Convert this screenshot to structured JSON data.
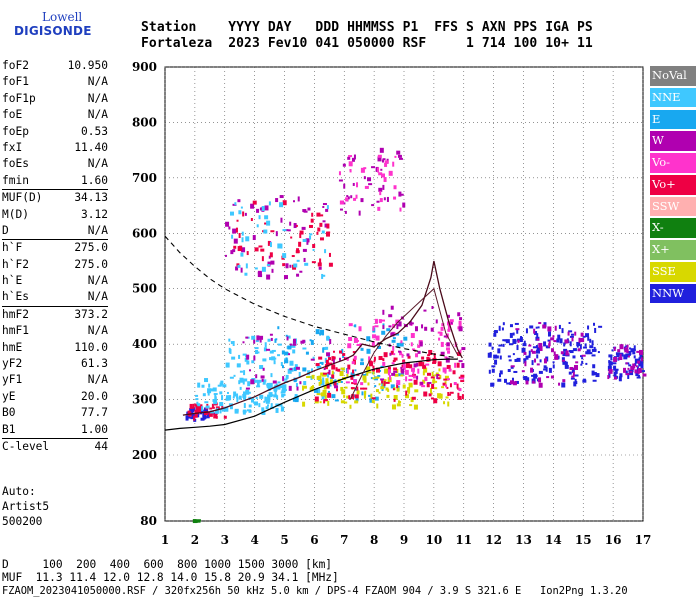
{
  "logo": {
    "line1": "Lowell",
    "line2": "DIGISONDE"
  },
  "header": {
    "labels": "Station    YYYY DAY   DDD HHMMSS P1  FFS S AXN PPS IGA PS",
    "values": "Fortaleza  2023 Fev10 041 050000 RSF     1 714 100 10+ 11"
  },
  "params": [
    {
      "k": "foF2",
      "v": "10.950"
    },
    {
      "k": "foF1",
      "v": "N/A"
    },
    {
      "k": "foF1p",
      "v": "N/A"
    },
    {
      "k": "foE",
      "v": "N/A"
    },
    {
      "k": "foEp",
      "v": "0.53"
    },
    {
      "k": "fxI",
      "v": "11.40"
    },
    {
      "k": "foEs",
      "v": "N/A"
    },
    {
      "k": "fmin",
      "v": "1.60"
    },
    {
      "k": "MUF(D)",
      "v": "34.13",
      "sep": true
    },
    {
      "k": "M(D)",
      "v": "3.12"
    },
    {
      "k": "D",
      "v": "N/A"
    },
    {
      "k": "h`F",
      "v": "275.0",
      "sep": true
    },
    {
      "k": "h`F2",
      "v": "275.0"
    },
    {
      "k": "h`E",
      "v": "N/A"
    },
    {
      "k": "h`Es",
      "v": "N/A"
    },
    {
      "k": "hmF2",
      "v": "373.2",
      "sep": true
    },
    {
      "k": "hmF1",
      "v": "N/A"
    },
    {
      "k": "hmE",
      "v": "110.0"
    },
    {
      "k": "yF2",
      "v": "61.3"
    },
    {
      "k": "yF1",
      "v": "N/A"
    },
    {
      "k": "yE",
      "v": "20.0"
    },
    {
      "k": "B0",
      "v": "77.7"
    },
    {
      "k": "B1",
      "v": "1.00"
    },
    {
      "k": "C-level",
      "v": "44",
      "sep": true
    }
  ],
  "auto": {
    "line1": "Auto:",
    "line2": "Artist5",
    "line3": "500200"
  },
  "footer": {
    "d_line": "D     100  200  400  600  800 1000 1500 3000 [km]",
    "muf_line": "MUF  11.3 11.4 12.0 12.8 14.0 15.8 20.9 34.1 [MHz]",
    "file_line": "FZAOM_2023041050000.RSF / 320fx256h 50 kHz 5.0 km / DPS-4 FZAOM 904 / 3.9 S 321.6 E   Ion2Png 1.3.20"
  },
  "legend": [
    {
      "label": "NoVal",
      "color": "#808080"
    },
    {
      "label": "NNE",
      "color": "#3fc8ff"
    },
    {
      "label": "E",
      "color": "#18a8f0"
    },
    {
      "label": "W",
      "color": "#b000b0"
    },
    {
      "label": "Vo-",
      "color": "#ff33cc"
    },
    {
      "label": "Vo+",
      "color": "#ee0044"
    },
    {
      "label": "SSW",
      "color": "#ffb0b0"
    },
    {
      "label": "X-",
      "color": "#108010"
    },
    {
      "label": "X+",
      "color": "#80c060"
    },
    {
      "label": "SSE",
      "color": "#d8d800"
    },
    {
      "label": "NNW",
      "color": "#2020dd"
    }
  ],
  "chart_data": {
    "type": "scatter",
    "xlim": [
      1,
      17
    ],
    "ylim": [
      80,
      900
    ],
    "x_ticks": [
      1,
      2,
      3,
      4,
      5,
      6,
      7,
      8,
      9,
      10,
      11,
      12,
      13,
      14,
      15,
      16,
      17
    ],
    "y_ticks": [
      80,
      200,
      300,
      400,
      500,
      600,
      700,
      800,
      900
    ],
    "grid": true,
    "legend_position": "right",
    "clusters": [
      {
        "x": [
          1.6,
          2.6
        ],
        "y": [
          265,
          290
        ],
        "color": "#2020dd",
        "n": 40
      },
      {
        "x": [
          1.7,
          3.0
        ],
        "y": [
          270,
          295
        ],
        "color": "#ee0044",
        "n": 30
      },
      {
        "x": [
          2.0,
          5.0
        ],
        "y": [
          280,
          340
        ],
        "color": "#3fc8ff",
        "n": 110
      },
      {
        "x": [
          3.0,
          6.5
        ],
        "y": [
          300,
          420
        ],
        "color": "#3fc8ff",
        "n": 110
      },
      {
        "x": [
          4.5,
          9.0
        ],
        "y": [
          300,
          440
        ],
        "color": "#18a8f0",
        "n": 90
      },
      {
        "x": [
          5.5,
          10.5
        ],
        "y": [
          290,
          360
        ],
        "color": "#d8d800",
        "n": 120
      },
      {
        "x": [
          6.0,
          11.0
        ],
        "y": [
          300,
          390
        ],
        "color": "#ee0044",
        "n": 120
      },
      {
        "x": [
          7.0,
          11.0
        ],
        "y": [
          320,
          450
        ],
        "color": "#ff33cc",
        "n": 90
      },
      {
        "x": [
          8.0,
          11.0
        ],
        "y": [
          330,
          470
        ],
        "color": "#b000b0",
        "n": 50
      },
      {
        "x": [
          3.5,
          7.0
        ],
        "y": [
          320,
          420
        ],
        "color": "#b000b0",
        "n": 40
      },
      {
        "x": [
          3.0,
          6.5
        ],
        "y": [
          520,
          670
        ],
        "color": "#b000b0",
        "n": 60
      },
      {
        "x": [
          3.2,
          6.5
        ],
        "y": [
          540,
          660
        ],
        "color": "#ee0044",
        "n": 50
      },
      {
        "x": [
          3.0,
          6.5
        ],
        "y": [
          520,
          660
        ],
        "color": "#3fc8ff",
        "n": 40
      },
      {
        "x": [
          6.8,
          9.0
        ],
        "y": [
          640,
          760
        ],
        "color": "#b000b0",
        "n": 40
      },
      {
        "x": [
          6.8,
          9.0
        ],
        "y": [
          640,
          750
        ],
        "color": "#ff33cc",
        "n": 30
      },
      {
        "x": [
          11.8,
          15.5
        ],
        "y": [
          330,
          440
        ],
        "color": "#2020dd",
        "n": 170
      },
      {
        "x": [
          12.5,
          15.0
        ],
        "y": [
          330,
          440
        ],
        "color": "#b000b0",
        "n": 60
      },
      {
        "x": [
          15.8,
          17.0
        ],
        "y": [
          340,
          400
        ],
        "color": "#2020dd",
        "n": 60
      },
      {
        "x": [
          15.8,
          17.0
        ],
        "y": [
          340,
          400
        ],
        "color": "#b000b0",
        "n": 30
      },
      {
        "x": [
          1.9,
          2.1
        ],
        "y": [
          80,
          85
        ],
        "color": "#108010",
        "n": 4
      }
    ],
    "profile_solid": {
      "x": [
        1.0,
        1.5,
        2.0,
        2.5,
        3.0,
        4.0,
        5.0,
        6.0,
        7.0,
        8.0,
        9.0,
        10.0,
        10.5,
        10.8
      ],
      "y": [
        245,
        248,
        250,
        252,
        255,
        270,
        295,
        318,
        338,
        355,
        366,
        372,
        373,
        373
      ]
    },
    "profile_trace": {
      "x": [
        1.6,
        2.0,
        2.5,
        3.0,
        3.5,
        4.0,
        4.5,
        5.0,
        5.5,
        6.0,
        6.5,
        7.0,
        7.3,
        7.6,
        8.0,
        8.4,
        8.8,
        9.2,
        9.6,
        9.9,
        10.0,
        10.2,
        10.5,
        10.8,
        10.95
      ],
      "y": [
        272,
        275,
        278,
        285,
        295,
        305,
        318,
        330,
        340,
        352,
        362,
        372,
        380,
        400,
        395,
        410,
        420,
        440,
        470,
        520,
        550,
        500,
        440,
        390,
        375
      ]
    },
    "profile_extra": {
      "x": [
        7.2,
        7.6,
        8.0,
        8.4,
        8.8,
        9.2,
        9.6,
        10.0,
        10.4,
        10.8
      ],
      "y": [
        300,
        345,
        385,
        415,
        440,
        460,
        480,
        500,
        420,
        380
      ]
    },
    "profile_dashed": {
      "x": [
        1.0,
        1.5,
        2.0,
        2.5,
        3.0,
        3.5,
        4.0,
        5.0,
        6.0,
        7.0,
        8.0,
        9.0,
        10.0,
        10.8
      ],
      "y": [
        595,
        565,
        540,
        518,
        500,
        486,
        472,
        450,
        432,
        418,
        404,
        392,
        382,
        375
      ]
    }
  }
}
